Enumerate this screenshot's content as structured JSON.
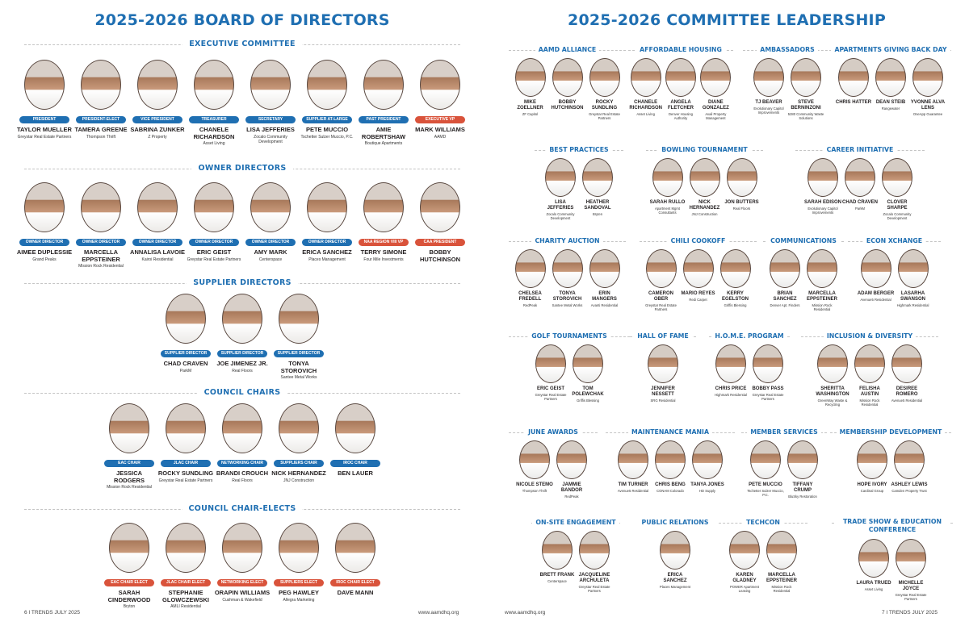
{
  "left": {
    "title": "2025-2026 BOARD OF DIRECTORS",
    "sections": [
      {
        "heading": "EXECUTIVE COMMITTEE",
        "people": [
          {
            "role": "PRESIDENT",
            "name": "TAYLOR MUELLER",
            "org": "Greystar Real Estate Partners"
          },
          {
            "role": "PRESIDENT-ELECT",
            "name": "TAMERA GREENE",
            "org": "Thompson Thrift"
          },
          {
            "role": "VICE PRESIDENT",
            "name": "SABRINA ZUNKER",
            "org": "Z Property"
          },
          {
            "role": "TREASURER",
            "name": "CHANELE RICHARDSON",
            "org": "Asset Living"
          },
          {
            "role": "SECRETARY",
            "name": "LISA JEFFERIES",
            "org": "Zocalo Community Development"
          },
          {
            "role": "SUPPLIER AT-LARGE",
            "name": "PETE MUCCIO",
            "org": "Tschetter Sulzer Muccio, P.C."
          },
          {
            "role": "PAST PRESIDENT",
            "name": "AMIE ROBERTSHAW",
            "org": "Boutique Apartments"
          },
          {
            "role": "EXECUTIVE VP",
            "red": true,
            "name": "MARK WILLIAMS",
            "org": "AAMD"
          }
        ]
      },
      {
        "heading": "OWNER DIRECTORS",
        "people": [
          {
            "role": "OWNER DIRECTOR",
            "name": "AIMEE DUPLESSIE",
            "org": "Grand Peaks"
          },
          {
            "role": "OWNER DIRECTOR",
            "name": "MARCELLA EPPSTEINER",
            "org": "Mission Rock Residential"
          },
          {
            "role": "OWNER DIRECTOR",
            "name": "ANNALISA LAVOIE",
            "org": "Kairoi Residential"
          },
          {
            "role": "OWNER DIRECTOR",
            "name": "ERIC GEIST",
            "org": "Greystar Real Estate Partners"
          },
          {
            "role": "OWNER DIRECTOR",
            "name": "AMY MARK",
            "org": "Centerspace"
          },
          {
            "role": "OWNER DIRECTOR",
            "name": "ERICA SANCHEZ",
            "org": "Places Management"
          },
          {
            "role": "NAA REGION VIII VP",
            "red": true,
            "name": "TERRY SIMONE",
            "org": "Four Mile Investments"
          },
          {
            "role": "CAA PRESIDENT",
            "red": true,
            "name": "BOBBY HUTCHINSON",
            "org": ""
          }
        ]
      },
      {
        "heading": "SUPPLIER DIRECTORS",
        "people": [
          {
            "role": "SUPPLIER DIRECTOR",
            "name": "CHAD CRAVEN",
            "org": "ParkM"
          },
          {
            "role": "SUPPLIER DIRECTOR",
            "name": "JOE JIMENEZ JR.",
            "org": "Real Floors"
          },
          {
            "role": "SUPPLIER DIRECTOR",
            "name": "TONYA STOROVICH",
            "org": "Santee Metal Works"
          }
        ]
      },
      {
        "heading": "COUNCIL CHAIRS",
        "people": [
          {
            "role": "EAC CHAIR",
            "name": "JESSICA RODGERS",
            "org": "Mission Rock Residential"
          },
          {
            "role": "JLAC CHAIR",
            "name": "ROCKY SUNDLING",
            "org": "Greystar Real Estate Partners"
          },
          {
            "role": "NETWORKING CHAIR",
            "name": "BRANDI CROUCH",
            "org": "Real Floors"
          },
          {
            "role": "SUPPLIERS CHAIR",
            "name": "NICK HERNANDEZ",
            "org": "JNJ Construction"
          },
          {
            "role": "IROC CHAIR",
            "name": "BEN LAUER",
            "org": ""
          }
        ]
      },
      {
        "heading": "COUNCIL CHAIR-ELECTS",
        "people": [
          {
            "role": "EAC CHAIR ELECT",
            "red": true,
            "name": "SARAH CINDERWOOD",
            "org": "Bryton"
          },
          {
            "role": "JLAC CHAIR ELECT",
            "red": true,
            "name": "STEPHANIE GLOWCZEWSKI",
            "org": "AMLI Residential"
          },
          {
            "role": "NETWORKING ELECT",
            "red": true,
            "name": "ORAPIN WILLIAMS",
            "org": "Cushman & Wakefield"
          },
          {
            "role": "SUPPLIERS ELECT",
            "red": true,
            "name": "PEG HAWLEY",
            "org": "Allegra Marketing"
          },
          {
            "role": "IROC CHAIR ELECT",
            "red": true,
            "name": "DAVE MANN",
            "org": ""
          }
        ]
      }
    ],
    "footer_left": "6 I TRENDS  JULY 2025",
    "footer_right": "www.aamdhq.org"
  },
  "right": {
    "title": "2025-2026 COMMITTEE LEADERSHIP",
    "committees": [
      {
        "heading": "AAMD ALLIANCE",
        "people": [
          {
            "name": "MIKE ZOELLNER",
            "org": "ZF Capitol"
          },
          {
            "name": "BOBBY HUTCHINSON",
            "org": ""
          },
          {
            "name": "ROCKY SUNDLING",
            "org": "Greystar Real Estate Partners"
          }
        ]
      },
      {
        "heading": "AFFORDABLE HOUSING",
        "people": [
          {
            "name": "CHANELE RICHARDSON",
            "org": "Asset Living"
          },
          {
            "name": "ANGELA FLETCHER",
            "org": "Denver Housing Authority"
          },
          {
            "name": "DIANE GONZALEZ",
            "org": "Avail Property Management"
          }
        ]
      },
      {
        "heading": "AMBASSADORS",
        "people": [
          {
            "name": "TJ BEAVER",
            "org": "Evolutionary Capitol Improvements"
          },
          {
            "name": "STEVE BERNINZONI",
            "org": "5280 Community Waste Solutions"
          }
        ]
      },
      {
        "heading": "APARTMENTS GIVING BACK DAY",
        "people": [
          {
            "name": "CHRIS HATTER",
            "org": ""
          },
          {
            "name": "DEAN STEIB",
            "org": "Rangewater"
          },
          {
            "name": "YVONNE ALVA LENS",
            "org": "OneApp Guarantee"
          }
        ]
      },
      {
        "heading": "BEST PRACTICES",
        "people": [
          {
            "name": "LISA JEFFERIES",
            "org": "Zocalo Community Development"
          },
          {
            "name": "HEATHER SANDOVAL",
            "org": "Bryten"
          }
        ]
      },
      {
        "heading": "BOWLING TOURNAMENT",
        "people": [
          {
            "name": "SARAH RULLO",
            "org": "Apartment Mgmt Consultants"
          },
          {
            "name": "NICK HERNANDEZ",
            "org": "JNJ Construction"
          },
          {
            "name": "JON BUTTERS",
            "org": "Real Floors"
          }
        ]
      },
      {
        "heading": "CAREER INITIATIVE",
        "people": [
          {
            "name": "SARAH EDISON",
            "org": "Evolutionary Capitol Improvements"
          },
          {
            "name": "CHAD CRAVEN",
            "org": "ParkM"
          },
          {
            "name": "CLOVER SHARPE",
            "org": "Zocalo Community Development"
          }
        ]
      },
      {
        "heading": "CHARITY AUCTION",
        "people": [
          {
            "name": "CHELSEA FREDELL",
            "org": "RedPeak"
          },
          {
            "name": "TONYA STOROVICH",
            "org": "Santee Metal Works"
          },
          {
            "name": "ERIN MANGERS",
            "org": "Avanti Residential"
          }
        ]
      },
      {
        "heading": "CHILI COOKOFF",
        "people": [
          {
            "name": "CAMERON OBER",
            "org": "Greystar Real Estate Partners"
          },
          {
            "name": "MARIO REYES",
            "org": "Redi Carpet"
          },
          {
            "name": "KERRY EGELSTON",
            "org": "Griffis Blessing"
          }
        ]
      },
      {
        "heading": "COMMUNICATIONS",
        "people": [
          {
            "name": "BRIAN SANCHEZ",
            "org": "Denver Apt. Finders"
          },
          {
            "name": "MARCELLA EPPSTEINER",
            "org": "Mission Rock Residential"
          }
        ]
      },
      {
        "heading": "ECON XCHANGE",
        "people": [
          {
            "name": "ADAM BERGER",
            "org": "Avenue5 Residential"
          },
          {
            "name": "LASARHA SWANSON",
            "org": "Highmark Residential"
          }
        ]
      },
      {
        "heading": "GOLF TOURNAMENTS",
        "people": [
          {
            "name": "ERIC GEIST",
            "org": "Greystar Real Estate Partners"
          },
          {
            "name": "TOM POLEWCHAK",
            "org": "Griffis Blessing"
          }
        ]
      },
      {
        "heading": "HALL OF FAME",
        "people": [
          {
            "name": "JENNIFER NESSETT",
            "org": "SRG Residential"
          }
        ]
      },
      {
        "heading": "H.O.M.E. PROGRAM",
        "people": [
          {
            "name": "CHRIS PRICE",
            "org": "Highmark Residential"
          },
          {
            "name": "BOBBY PASS",
            "org": "Greystar Real Estate Partners"
          }
        ]
      },
      {
        "heading": "INCLUSION & DIVERSITY",
        "people": [
          {
            "name": "SHERITTA WASHINGTON",
            "org": "GreenWay Waste & Recycling"
          },
          {
            "name": "FELISHA AUSTIN",
            "org": "Mission Rock Residential"
          },
          {
            "name": "DESIREE ROMERO",
            "org": "Avenue5 Residential"
          }
        ]
      },
      {
        "heading": "JUNE AWARDS",
        "people": [
          {
            "name": "NICOLE STEMO",
            "org": "Thompson Thrift"
          },
          {
            "name": "JAMMIE BANDOR",
            "org": "RedPeak"
          }
        ]
      },
      {
        "heading": "MAINTENANCE MANIA",
        "people": [
          {
            "name": "TIM TURNER",
            "org": "Avenue5 Residential"
          },
          {
            "name": "CHRIS BENG",
            "org": "CONAM Colorado"
          },
          {
            "name": "TANYA JONES",
            "org": "HD Supply"
          }
        ]
      },
      {
        "heading": "MEMBER SERVICES",
        "people": [
          {
            "name": "PETE MUCCIO",
            "org": "Tschetter Sulzer Muccio, P.C."
          },
          {
            "name": "TIFFANY CRUMP",
            "org": "BluSky Restoration"
          }
        ]
      },
      {
        "heading": "MEMBERSHIP DEVELOPMENT",
        "people": [
          {
            "name": "HOPE IVORY",
            "org": "Cardinal Group"
          },
          {
            "name": "ASHLEY LEWIS",
            "org": "Camden Property Trust"
          }
        ]
      },
      {
        "heading": "ON-SITE ENGAGEMENT",
        "people": [
          {
            "name": "BRETT FRANK",
            "org": "Centerspace"
          },
          {
            "name": "JACQUELINE ARCHULETA",
            "org": "Greystar Real Estate Partners"
          }
        ]
      },
      {
        "heading": "PUBLIC RELATIONS",
        "people": [
          {
            "name": "ERICA SANCHEZ",
            "org": "Places Management"
          }
        ]
      },
      {
        "heading": "TECHCON",
        "people": [
          {
            "name": "KAREN GLADNEY",
            "org": "POWER Apartment Leasing"
          },
          {
            "name": "MARCELLA EPPSTEINER",
            "org": "Mission Rock Residential"
          }
        ]
      },
      {
        "heading": "TRADE SHOW & EDUCATION CONFERENCE",
        "people": [
          {
            "name": "LAURA TRUED",
            "org": "Asset Living"
          },
          {
            "name": "MICHELLE JOYCE",
            "org": "Greystar Real Estate Partners"
          }
        ]
      }
    ],
    "footer_left": "www.aamdhq.org",
    "footer_right": "7 I TRENDS  JULY 2025"
  }
}
